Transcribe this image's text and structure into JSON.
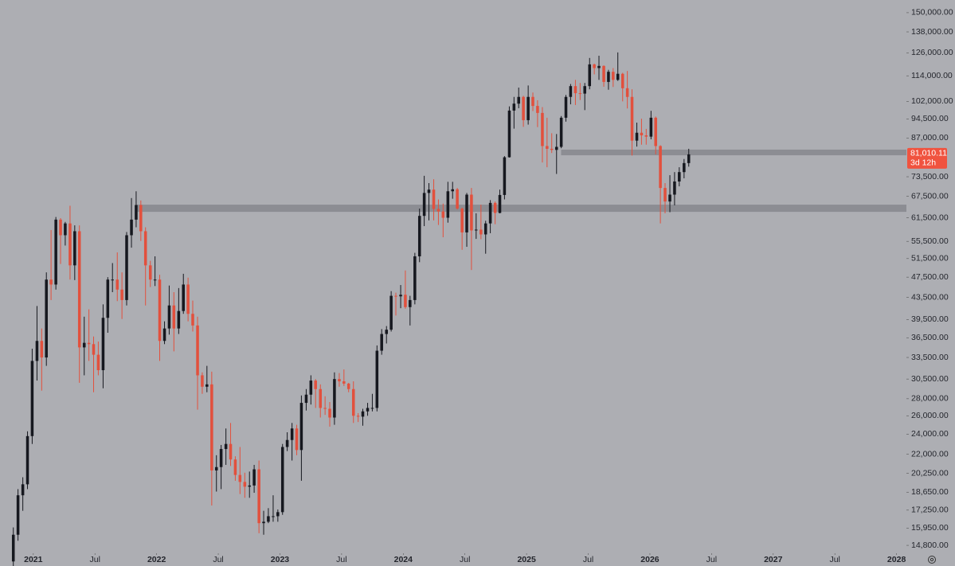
{
  "chart_data": {
    "type": "candlestick",
    "log_scale": true,
    "up_color": "#16181f",
    "down_color": "#e2503d",
    "zone_color": "#86878d",
    "xlim": [
      2020.73,
      2028.08
    ],
    "ylim": [
      14300,
      158500
    ],
    "xticks": [
      2021,
      {
        "value": 2021.5,
        "label": "Jul"
      },
      2022,
      {
        "value": 2022.5,
        "label": "Jul"
      },
      2023,
      {
        "value": 2023.5,
        "label": "Jul"
      },
      2024,
      {
        "value": 2024.5,
        "label": "Jul"
      },
      2025,
      {
        "value": 2025.5,
        "label": "Jul"
      },
      2026,
      {
        "value": 2026.5,
        "label": "Jul"
      },
      2027,
      {
        "value": 2027.5,
        "label": "Jul"
      },
      2028
    ],
    "yticks": [
      {
        "value": 150000,
        "label": "150,000.00"
      },
      {
        "value": 138000,
        "label": "138,000.00"
      },
      {
        "value": 126000,
        "label": "126,000.00"
      },
      {
        "value": 114000,
        "label": "114,000.00"
      },
      {
        "value": 102000,
        "label": "102,000.00"
      },
      {
        "value": 94500,
        "label": "94,500.00"
      },
      {
        "value": 87000,
        "label": "87,000.00"
      },
      {
        "value": 73500,
        "label": "73,500.00"
      },
      {
        "value": 67500,
        "label": "67,500.00"
      },
      {
        "value": 61500,
        "label": "61,500.00"
      },
      {
        "value": 55500,
        "label": "55,500.00"
      },
      {
        "value": 51500,
        "label": "51,500.00"
      },
      {
        "value": 47500,
        "label": "47,500.00"
      },
      {
        "value": 43500,
        "label": "43,500.00"
      },
      {
        "value": 39500,
        "label": "39,500.00"
      },
      {
        "value": 36500,
        "label": "36,500.00"
      },
      {
        "value": 33500,
        "label": "33,500.00"
      },
      {
        "value": 30500,
        "label": "30,500.00"
      },
      {
        "value": 28000,
        "label": "28,000.00"
      },
      {
        "value": 26000,
        "label": "26,000.00"
      },
      {
        "value": 24000,
        "label": "24,000.00"
      },
      {
        "value": 22000,
        "label": "22,000.00"
      },
      {
        "value": 20250,
        "label": "20,250.00"
      },
      {
        "value": 18650,
        "label": "18,650.00"
      },
      {
        "value": 17250,
        "label": "17,250.00"
      },
      {
        "value": 15950,
        "label": "15,950.00"
      },
      {
        "value": 14800,
        "label": "14,800.00"
      }
    ],
    "last_price": {
      "value": 81010.11,
      "label": "81,010.11"
    },
    "countdown": "3d 12h",
    "zones": [
      {
        "from": 2021.84,
        "low": 63100,
        "high": 65100
      },
      {
        "from": 2025.28,
        "low": 80700,
        "high": 82700
      }
    ],
    "x": [
      2020.838,
      2020.876,
      2020.915,
      2020.953,
      2020.991,
      2021.03,
      2021.068,
      2021.106,
      2021.144,
      2021.183,
      2021.221,
      2021.259,
      2021.298,
      2021.336,
      2021.374,
      2021.413,
      2021.451,
      2021.489,
      2021.527,
      2021.566,
      2021.604,
      2021.642,
      2021.681,
      2021.719,
      2021.757,
      2021.796,
      2021.834,
      2021.872,
      2021.91,
      2021.949,
      2021.987,
      2022.025,
      2022.064,
      2022.102,
      2022.14,
      2022.179,
      2022.217,
      2022.255,
      2022.293,
      2022.332,
      2022.37,
      2022.408,
      2022.447,
      2022.485,
      2022.523,
      2022.562,
      2022.6,
      2022.638,
      2022.676,
      2022.715,
      2022.753,
      2022.791,
      2022.83,
      2022.868,
      2022.906,
      2022.945,
      2022.983,
      2023.021,
      2023.059,
      2023.098,
      2023.136,
      2023.174,
      2023.213,
      2023.251,
      2023.289,
      2023.328,
      2023.366,
      2023.404,
      2023.442,
      2023.481,
      2023.519,
      2023.557,
      2023.596,
      2023.634,
      2023.672,
      2023.711,
      2023.749,
      2023.787,
      2023.825,
      2023.864,
      2023.902,
      2023.94,
      2023.979,
      2024.017,
      2024.055,
      2024.094,
      2024.132,
      2024.17,
      2024.208,
      2024.247,
      2024.285,
      2024.323,
      2024.362,
      2024.4,
      2024.438,
      2024.477,
      2024.515,
      2024.553,
      2024.591,
      2024.63,
      2024.668,
      2024.706,
      2024.745,
      2024.783,
      2024.821,
      2024.86,
      2024.898,
      2024.936,
      2024.974,
      2025.013,
      2025.051,
      2025.089,
      2025.128,
      2025.166,
      2025.204,
      2025.243,
      2025.281,
      2025.319,
      2025.357,
      2025.396,
      2025.434,
      2025.472,
      2025.511,
      2025.549,
      2025.587,
      2025.626,
      2025.664,
      2025.702,
      2025.74,
      2025.779,
      2025.817,
      2025.855,
      2025.894,
      2025.932,
      2025.97,
      2026.009,
      2026.047,
      2026.085,
      2026.123,
      2026.162,
      2026.2,
      2026.238,
      2026.277,
      2026.315
    ],
    "open": [
      13800,
      15500,
      18400,
      19300,
      23800,
      33000,
      36000,
      33500,
      47000,
      46000,
      61000,
      57000,
      60000,
      50000,
      58000,
      35000,
      35700,
      35500,
      33900,
      31700,
      39800,
      47000,
      47000,
      45000,
      43000,
      57000,
      61000,
      65000,
      58000,
      50000,
      47000,
      47000,
      36000,
      38000,
      42000,
      38000,
      41000,
      46000,
      40500,
      38500,
      31000,
      29500,
      29800,
      20500,
      20800,
      22500,
      23000,
      21500,
      20100,
      19500,
      19100,
      19200,
      20600,
      16300,
      16400,
      16800,
      16800,
      17100,
      22700,
      23400,
      24600,
      22400,
      27500,
      28500,
      30300,
      29200,
      26900,
      26800,
      25800,
      30500,
      30200,
      29900,
      29200,
      26000,
      25900,
      26500,
      26900,
      26900,
      34500,
      37100,
      37800,
      43800,
      43700,
      44000,
      41700,
      43000,
      52000,
      62000,
      68500,
      69500,
      63900,
      63200,
      61500,
      69000,
      69600,
      64000,
      57700,
      68000,
      58200,
      58400,
      57200,
      60000,
      65600,
      62800,
      67900,
      80000,
      98000,
      101000,
      104000,
      94000,
      104000,
      100000,
      97000,
      84000,
      83000,
      82600,
      83700,
      95000,
      104000,
      109000,
      105700,
      105500,
      109000,
      119800,
      117900,
      119000,
      111000,
      116000,
      112000,
      115000,
      108000,
      104000,
      86000,
      89000,
      88000,
      87500,
      95000,
      84000,
      70000,
      66000,
      68000,
      72000,
      75000,
      78000
    ],
    "high": [
      16000,
      18900,
      19900,
      24300,
      34800,
      41900,
      38000,
      48500,
      58300,
      61700,
      61400,
      60400,
      64800,
      59500,
      59500,
      40000,
      41300,
      36700,
      35900,
      42200,
      47500,
      50500,
      52900,
      48500,
      57800,
      67000,
      69000,
      66300,
      59000,
      51000,
      52000,
      48000,
      39200,
      45800,
      44500,
      45300,
      48200,
      47400,
      42900,
      40000,
      31400,
      32300,
      31500,
      21900,
      22900,
      24600,
      25200,
      21800,
      22700,
      20300,
      20400,
      21000,
      21400,
      17200,
      17400,
      18400,
      17300,
      23000,
      24200,
      25200,
      25000,
      28400,
      29200,
      31000,
      30500,
      29800,
      28300,
      27600,
      31400,
      31300,
      31800,
      30000,
      30200,
      26300,
      26800,
      27500,
      28600,
      35300,
      37900,
      38400,
      44700,
      44400,
      45900,
      48900,
      43800,
      52800,
      64000,
      73800,
      71500,
      72700,
      66600,
      65400,
      71900,
      71900,
      70000,
      64300,
      68500,
      70000,
      62700,
      65100,
      60700,
      66400,
      66000,
      69500,
      80400,
      99800,
      104000,
      108300,
      104500,
      109300,
      106000,
      102500,
      99500,
      95000,
      88800,
      88500,
      95700,
      104900,
      110000,
      112000,
      110500,
      110500,
      123200,
      120200,
      124400,
      119300,
      117000,
      117900,
      126200,
      115500,
      116400,
      107500,
      93000,
      94600,
      90500,
      97900,
      95500,
      84300,
      71500,
      74000,
      75000,
      76600,
      79400,
      83000
    ],
    "low": [
      13500,
      15100,
      17200,
      18900,
      23000,
      30300,
      29000,
      32300,
      43000,
      45000,
      50300,
      54500,
      47000,
      46900,
      30000,
      31000,
      33000,
      28800,
      31000,
      29300,
      37300,
      44500,
      42800,
      39600,
      42000,
      54000,
      59000,
      55600,
      42000,
      45500,
      45700,
      33000,
      35500,
      37000,
      34400,
      37100,
      40500,
      39200,
      37500,
      26700,
      28600,
      28800,
      17600,
      18700,
      18900,
      21000,
      20900,
      19600,
      18500,
      18200,
      18200,
      18600,
      15600,
      15500,
      16300,
      16400,
      16400,
      16900,
      22300,
      21400,
      21900,
      19600,
      26600,
      27300,
      26900,
      25800,
      26100,
      24800,
      25000,
      29500,
      29600,
      28800,
      25200,
      25300,
      24900,
      26000,
      26500,
      26500,
      33900,
      35600,
      37500,
      40200,
      41500,
      41400,
      38500,
      42200,
      50700,
      59300,
      60800,
      60800,
      59600,
      56500,
      60200,
      66800,
      63700,
      53500,
      54200,
      49000,
      56100,
      56000,
      52600,
      57500,
      59800,
      62700,
      66600,
      79900,
      90600,
      99000,
      91300,
      92200,
      97800,
      91200,
      78200,
      76600,
      81500,
      74400,
      83200,
      93400,
      100700,
      100400,
      102600,
      98200,
      107500,
      114700,
      112000,
      108700,
      107300,
      108600,
      111500,
      102000,
      98900,
      80600,
      83800,
      84500,
      84500,
      86500,
      81000,
      60000,
      62700,
      63000,
      64900,
      70500,
      73000,
      76800
    ],
    "close": [
      15500,
      18400,
      19300,
      23800,
      33000,
      36000,
      33500,
      47000,
      46000,
      61000,
      57000,
      60000,
      50000,
      58000,
      35000,
      35700,
      35500,
      33900,
      31700,
      39800,
      47000,
      47000,
      45000,
      43000,
      57000,
      61000,
      65000,
      58000,
      50000,
      47000,
      47000,
      36000,
      38000,
      42000,
      38000,
      41000,
      46000,
      40500,
      38500,
      31000,
      29500,
      29800,
      20500,
      20800,
      22500,
      23000,
      21500,
      20100,
      19500,
      19100,
      19200,
      20600,
      16300,
      16400,
      16800,
      16800,
      17100,
      22700,
      23400,
      24600,
      22400,
      27500,
      28500,
      30300,
      29200,
      26900,
      26800,
      25800,
      30500,
      30200,
      29900,
      29200,
      26000,
      25900,
      26500,
      26900,
      26900,
      34500,
      37100,
      37800,
      43800,
      43700,
      44000,
      41700,
      43000,
      52000,
      62000,
      68500,
      69500,
      63900,
      63200,
      61500,
      69000,
      69600,
      64000,
      57700,
      68000,
      58200,
      58400,
      57200,
      60000,
      65600,
      62800,
      67900,
      80000,
      98000,
      101000,
      104000,
      94000,
      104000,
      100000,
      97000,
      84000,
      83000,
      82600,
      83700,
      95000,
      104000,
      109000,
      105700,
      105500,
      109000,
      119800,
      117900,
      119000,
      111000,
      116000,
      112000,
      115000,
      108000,
      104000,
      86000,
      89000,
      88000,
      87500,
      95000,
      84000,
      70000,
      66000,
      68000,
      72000,
      75000,
      78000,
      81010.11
    ]
  }
}
